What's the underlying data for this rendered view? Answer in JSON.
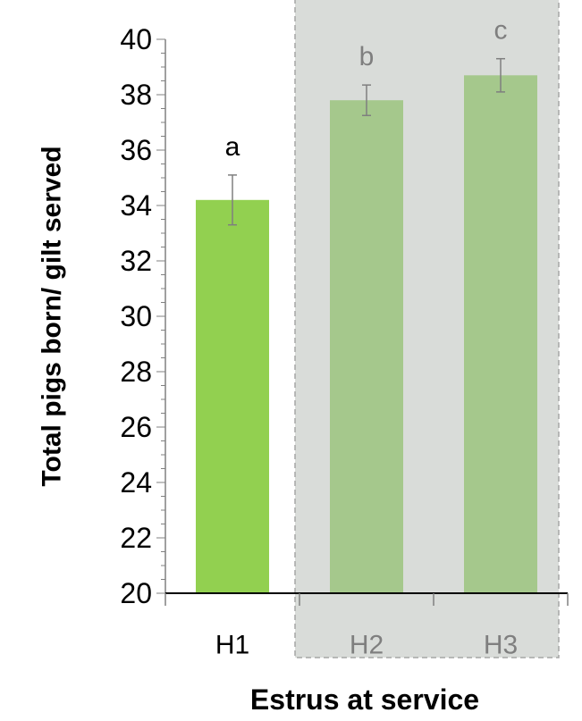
{
  "chart_data": {
    "type": "bar",
    "categories": [
      "H1",
      "H2",
      "H3"
    ],
    "values": [
      34.2,
      37.8,
      38.7
    ],
    "error": [
      0.9,
      0.55,
      0.6
    ],
    "significance_letters": [
      "a",
      "b",
      "c"
    ],
    "xlabel": "Estrus at service",
    "ylabel": "Total pigs born/ gilt served",
    "ylim": [
      20,
      40
    ],
    "yticks": [
      20,
      22,
      24,
      26,
      28,
      30,
      32,
      34,
      36,
      38,
      40
    ],
    "grid": false,
    "highlighted_categories": [
      "H2",
      "H3"
    ],
    "colors": {
      "bar_primary": "#92d050",
      "bar_highlighted": "#a5c88c",
      "highlight_region": "#d9dcd9",
      "highlight_border": "#a6a6a6",
      "highlighted_text": "#7f7f7f",
      "axis": "#000000",
      "error_bar": "#7f7f7f"
    }
  }
}
